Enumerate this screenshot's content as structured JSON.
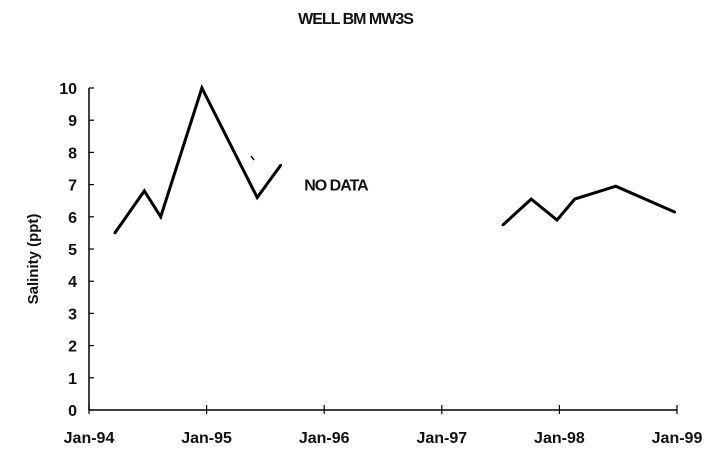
{
  "chart_data": {
    "type": "line",
    "title": "WELL BM MW3S",
    "xlabel": "",
    "ylabel": "Salinity (ppt)",
    "x_tick_labels": [
      "Jan-94",
      "Jan-95",
      "Jan-96",
      "Jan-97",
      "Jan-98",
      "Jan-99"
    ],
    "xlim": [
      1994.0,
      1999.0
    ],
    "ylim": [
      0,
      10
    ],
    "y_ticks": [
      0,
      1,
      2,
      3,
      4,
      5,
      6,
      7,
      8,
      9,
      10
    ],
    "grid": false,
    "annotations": [
      {
        "text": "NO DATA",
        "x": 1996.1,
        "y": 7.0
      }
    ],
    "series": [
      {
        "segments": [
          [
            [
              1994.22,
              5.5
            ],
            [
              1994.47,
              6.8
            ],
            [
              1994.61,
              6.0
            ],
            [
              1994.96,
              10.0
            ],
            [
              1995.43,
              6.6
            ],
            [
              1995.63,
              7.6
            ]
          ],
          [
            [
              1997.52,
              5.75
            ],
            [
              1997.76,
              6.55
            ],
            [
              1997.98,
              5.9
            ],
            [
              1998.13,
              6.55
            ],
            [
              1998.48,
              6.95
            ],
            [
              1998.98,
              6.15
            ]
          ]
        ]
      }
    ],
    "line_color": "#000000"
  }
}
